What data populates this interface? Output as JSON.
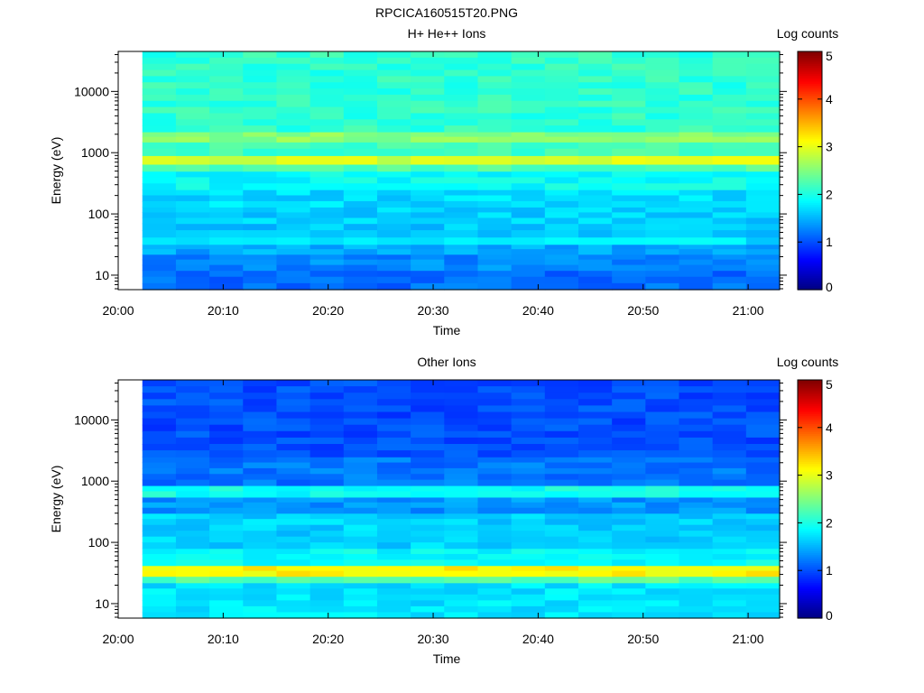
{
  "figure_title": "RPCICA160515T20.PNG",
  "chart_data": [
    {
      "type": "heatmap",
      "title": "H+ He++ Ions",
      "xlabel": "Time",
      "ylabel": "Energy (eV)",
      "yscale": "log",
      "ylim": [
        5.8,
        45000
      ],
      "x_ticks": [
        "20:00",
        "20:10",
        "20:20",
        "20:30",
        "20:40",
        "20:50",
        "21:00"
      ],
      "y_ticks": [
        "10",
        "100",
        "1000",
        "10000"
      ],
      "x_range_minutes": [
        0,
        63
      ],
      "data_start_minute": 2.3,
      "time_bins": 19,
      "colorbar": {
        "label": "Log counts",
        "range": [
          0,
          5
        ],
        "ticks": [
          "0",
          "1",
          "2",
          "3",
          "4",
          "5"
        ],
        "colormap": "jet"
      },
      "bands": [
        {
          "e_min": 5.8,
          "e_max": 12,
          "log_counts": 1.15
        },
        {
          "e_min": 12,
          "e_max": 22,
          "log_counts": 1.3
        },
        {
          "e_min": 22,
          "e_max": 32,
          "log_counts": 1.45
        },
        {
          "e_min": 32,
          "e_max": 42,
          "log_counts": 1.75
        },
        {
          "e_min": 42,
          "e_max": 70,
          "log_counts": 1.6
        },
        {
          "e_min": 70,
          "e_max": 130,
          "log_counts": 1.65
        },
        {
          "e_min": 130,
          "e_max": 250,
          "log_counts": 1.7
        },
        {
          "e_min": 250,
          "e_max": 500,
          "log_counts": 1.9
        },
        {
          "e_min": 500,
          "e_max": 650,
          "log_counts": 2.25
        },
        {
          "e_min": 650,
          "e_max": 900,
          "log_counts": 2.9
        },
        {
          "e_min": 900,
          "e_max": 1500,
          "log_counts": 2.2
        },
        {
          "e_min": 1500,
          "e_max": 2200,
          "log_counts": 2.55
        },
        {
          "e_min": 2200,
          "e_max": 45000,
          "log_counts": 2.1
        }
      ]
    },
    {
      "type": "heatmap",
      "title": "Other Ions",
      "xlabel": "Time",
      "ylabel": "Energy (eV)",
      "yscale": "log",
      "ylim": [
        5.8,
        45000
      ],
      "x_ticks": [
        "20:00",
        "20:10",
        "20:20",
        "20:30",
        "20:40",
        "20:50",
        "21:00"
      ],
      "y_ticks": [
        "10",
        "100",
        "1000",
        "10000"
      ],
      "x_range_minutes": [
        0,
        63
      ],
      "data_start_minute": 2.3,
      "time_bins": 19,
      "colorbar": {
        "label": "Log counts",
        "range": [
          0,
          5
        ],
        "ticks": [
          "0",
          "1",
          "2",
          "3",
          "4",
          "5"
        ],
        "colormap": "jet"
      },
      "bands": [
        {
          "e_min": 5.8,
          "e_max": 22,
          "log_counts": 1.75
        },
        {
          "e_min": 22,
          "e_max": 28,
          "log_counts": 2.3
        },
        {
          "e_min": 28,
          "e_max": 42,
          "log_counts": 3.15
        },
        {
          "e_min": 42,
          "e_max": 80,
          "log_counts": 1.9
        },
        {
          "e_min": 80,
          "e_max": 300,
          "log_counts": 1.65
        },
        {
          "e_min": 300,
          "e_max": 550,
          "log_counts": 1.35
        },
        {
          "e_min": 550,
          "e_max": 850,
          "log_counts": 1.95
        },
        {
          "e_min": 850,
          "e_max": 2500,
          "log_counts": 1.2
        },
        {
          "e_min": 2500,
          "e_max": 45000,
          "log_counts": 1.0
        }
      ]
    }
  ]
}
